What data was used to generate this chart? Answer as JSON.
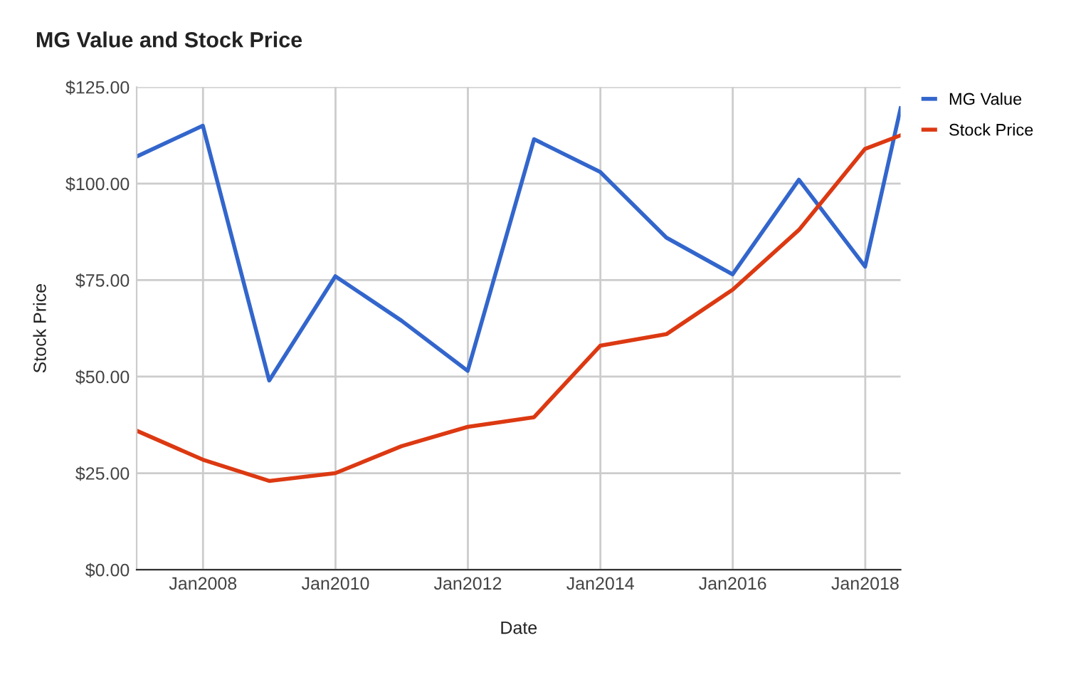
{
  "chart_data": {
    "type": "line",
    "title": "MG Value and Stock Price",
    "xlabel": "Date",
    "ylabel": "Stock Price",
    "x": [
      "2006-12-31",
      "2007-12-31",
      "2008-12-31",
      "2009-12-31",
      "2010-12-31",
      "2011-12-31",
      "2012-12-31",
      "2013-12-31",
      "2014-12-31",
      "2015-12-31",
      "2016-12-31",
      "2017-12-31",
      "2018-07-15"
    ],
    "series": [
      {
        "name": "MG Value",
        "color": "#3366cc",
        "values": [
          107,
          115,
          49,
          76,
          64.5,
          51.5,
          111.5,
          103,
          86,
          76.5,
          101,
          78.5,
          119.5
        ]
      },
      {
        "name": "Stock Price",
        "color": "#dc3912",
        "values": [
          36,
          28.5,
          23,
          25,
          32,
          37,
          39.5,
          58,
          61,
          72.5,
          88,
          109,
          112.5
        ]
      }
    ],
    "xlim": [
      "2006-12-31",
      "2018-07-15"
    ],
    "xticks": [
      {
        "value": "2008-01-01",
        "label": "Jan2008"
      },
      {
        "value": "2010-01-01",
        "label": "Jan2010"
      },
      {
        "value": "2012-01-01",
        "label": "Jan2012"
      },
      {
        "value": "2014-01-01",
        "label": "Jan2014"
      },
      {
        "value": "2016-01-01",
        "label": "Jan2016"
      },
      {
        "value": "2018-01-01",
        "label": "Jan2018"
      }
    ],
    "ylim": [
      0,
      125
    ],
    "yticks": [
      {
        "value": 0,
        "label": "$0.00"
      },
      {
        "value": 25,
        "label": "$25.00"
      },
      {
        "value": 50,
        "label": "$50.00"
      },
      {
        "value": 75,
        "label": "$75.00"
      },
      {
        "value": 100,
        "label": "$100.00"
      },
      {
        "value": 125,
        "label": "$125.00"
      }
    ],
    "grid": true,
    "legend": "top right",
    "marker": "none",
    "line_style": "solid"
  }
}
